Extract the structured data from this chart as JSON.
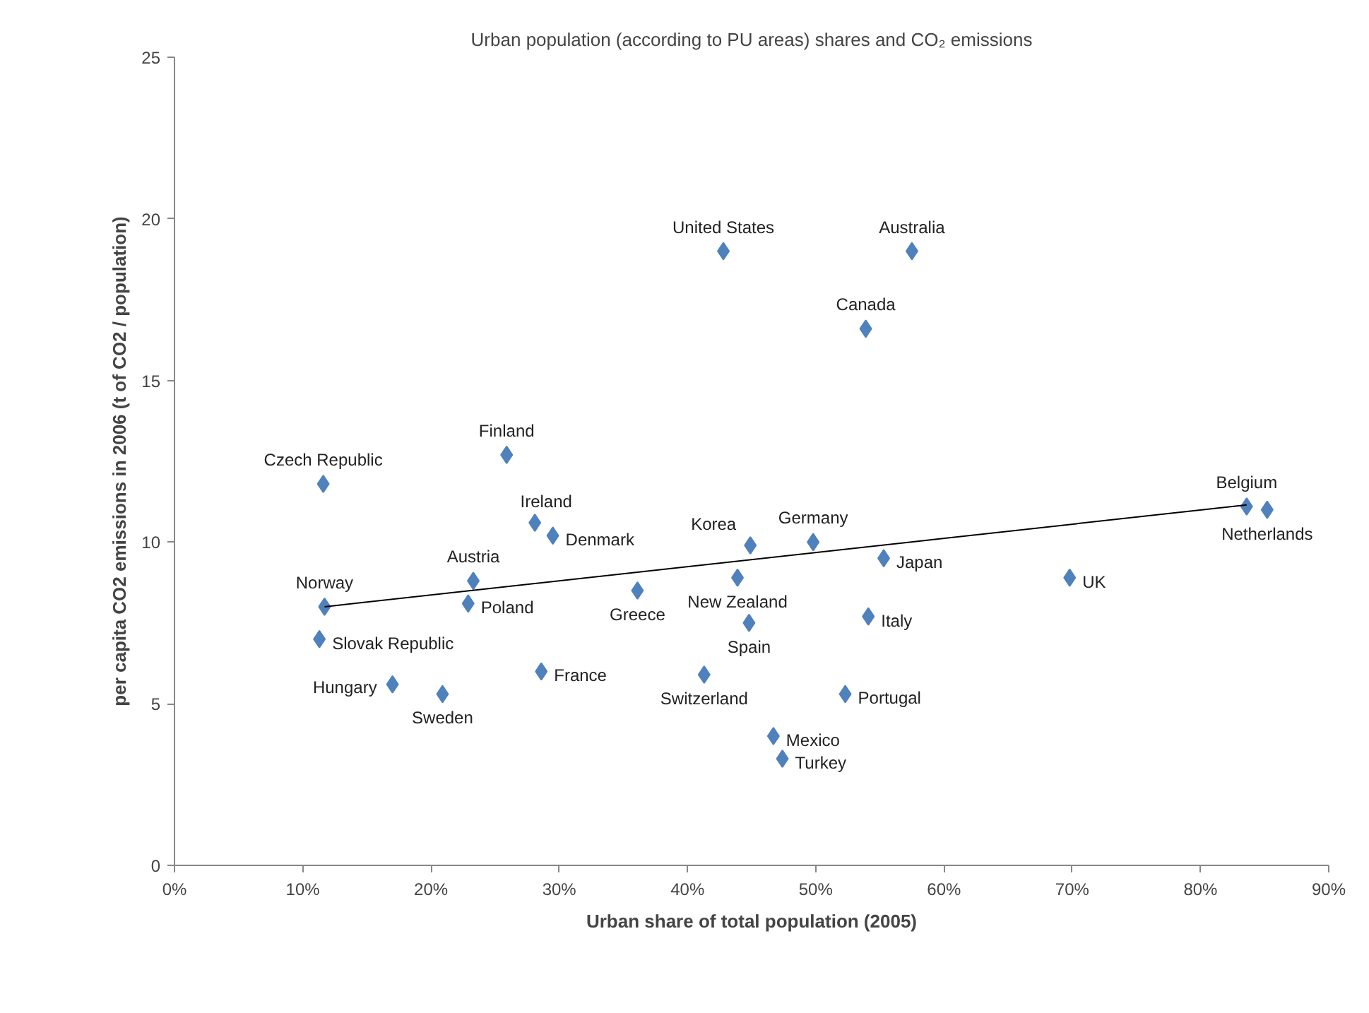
{
  "chart_data": {
    "type": "scatter",
    "title": "Urban population (according to PU areas) shares and CO₂ emissions",
    "xlabel": "Urban share of total population (2005)",
    "ylabel": "per capita CO2 emissions in 2006 (t of CO2 / population)",
    "xlim": [
      0,
      90
    ],
    "ylim": [
      0,
      25
    ],
    "xticks": [
      {
        "value": 0,
        "label": "0%"
      },
      {
        "value": 10,
        "label": "10%"
      },
      {
        "value": 20,
        "label": "20%"
      },
      {
        "value": 30,
        "label": "30%"
      },
      {
        "value": 40,
        "label": "40%"
      },
      {
        "value": 50,
        "label": "50%"
      },
      {
        "value": 60,
        "label": "60%"
      },
      {
        "value": 70,
        "label": "70%"
      },
      {
        "value": 80,
        "label": "80%"
      },
      {
        "value": 90,
        "label": "90%"
      }
    ],
    "yticks": [
      0,
      5,
      10,
      15,
      20,
      25
    ],
    "grid": false,
    "series": [
      {
        "marker": "diamond",
        "color": "#4f81bd",
        "x": [
          11.6,
          11.7,
          11.3,
          17.0,
          20.9,
          23.3,
          22.9,
          25.9,
          28.1,
          29.5,
          28.6,
          36.1,
          41.3,
          42.8,
          43.9,
          44.9,
          44.8,
          46.7,
          47.4,
          49.8,
          52.3,
          53.9,
          54.1,
          55.3,
          57.5,
          69.8,
          83.6,
          85.2
        ],
        "values": [
          11.8,
          8.0,
          7.0,
          5.6,
          5.3,
          8.8,
          8.1,
          12.7,
          10.6,
          10.2,
          6.0,
          8.5,
          5.9,
          19.0,
          8.9,
          9.9,
          7.5,
          4.0,
          3.3,
          10.0,
          5.3,
          16.6,
          7.7,
          9.5,
          19.0,
          8.9,
          11.1,
          11.0
        ]
      },
      {
        "type": "line",
        "color": "#000000",
        "x": [
          11.7,
          83.6
        ],
        "values": [
          8.0,
          11.15
        ]
      }
    ],
    "annotations": [
      {
        "text": "Czech Republic",
        "x": 11.6,
        "y": 11.8
      },
      {
        "text": "Norway",
        "x": 11.7,
        "y": 8.0
      },
      {
        "text": "Slovak Republic",
        "x": 11.3,
        "y": 7.0
      },
      {
        "text": "Hungary",
        "x": 17.0,
        "y": 5.6
      },
      {
        "text": "Sweden",
        "x": 20.9,
        "y": 5.3
      },
      {
        "text": "Austria",
        "x": 23.3,
        "y": 8.8
      },
      {
        "text": "Poland",
        "x": 22.9,
        "y": 8.1
      },
      {
        "text": "Finland",
        "x": 25.9,
        "y": 12.7
      },
      {
        "text": "Ireland",
        "x": 28.1,
        "y": 10.6
      },
      {
        "text": "Denmark",
        "x": 29.5,
        "y": 10.2
      },
      {
        "text": "France",
        "x": 28.6,
        "y": 6.0
      },
      {
        "text": "Greece",
        "x": 36.1,
        "y": 8.5
      },
      {
        "text": "Switzerland",
        "x": 41.3,
        "y": 5.9
      },
      {
        "text": "United States",
        "x": 42.8,
        "y": 19.0
      },
      {
        "text": "New Zealand",
        "x": 43.9,
        "y": 8.9
      },
      {
        "text": "Korea",
        "x": 44.9,
        "y": 9.9
      },
      {
        "text": "Spain",
        "x": 44.8,
        "y": 7.5
      },
      {
        "text": "Mexico",
        "x": 46.7,
        "y": 4.0
      },
      {
        "text": "Turkey",
        "x": 47.4,
        "y": 3.3
      },
      {
        "text": "Germany",
        "x": 49.8,
        "y": 10.0
      },
      {
        "text": "Portugal",
        "x": 52.3,
        "y": 5.3
      },
      {
        "text": "Canada",
        "x": 53.9,
        "y": 16.6
      },
      {
        "text": "Italy",
        "x": 54.1,
        "y": 7.7
      },
      {
        "text": "Japan",
        "x": 55.3,
        "y": 9.5
      },
      {
        "text": "Australia",
        "x": 57.5,
        "y": 19.0
      },
      {
        "text": "UK",
        "x": 69.8,
        "y": 8.9
      },
      {
        "text": "Belgium",
        "x": 83.6,
        "y": 11.1
      },
      {
        "text": "Netherlands",
        "x": 85.2,
        "y": 11.0
      }
    ]
  }
}
